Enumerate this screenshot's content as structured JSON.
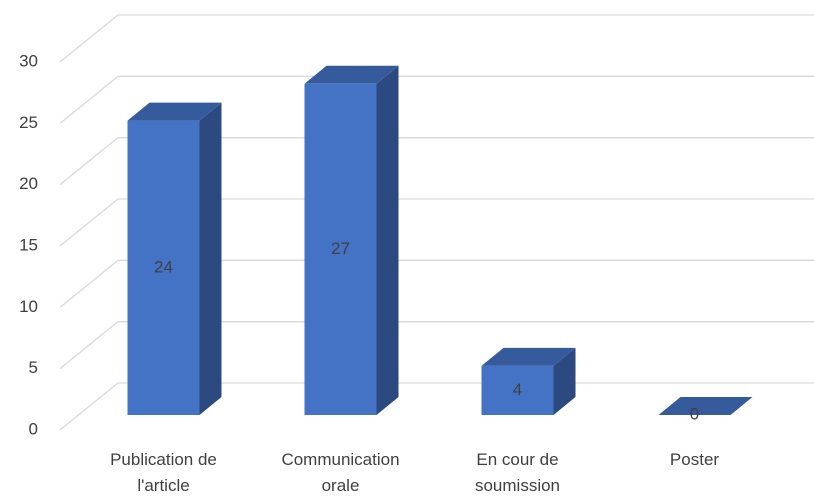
{
  "chart_data": {
    "type": "bar3d",
    "categories": [
      "Publication de l'article",
      "Communication orale",
      "En cour de soumission",
      "Poster"
    ],
    "values": [
      24,
      27,
      4,
      0
    ],
    "color": "#4472c4",
    "ylim": [
      0,
      30
    ],
    "yticks": [
      0,
      5,
      10,
      15,
      20,
      25,
      30
    ],
    "grid": true
  }
}
